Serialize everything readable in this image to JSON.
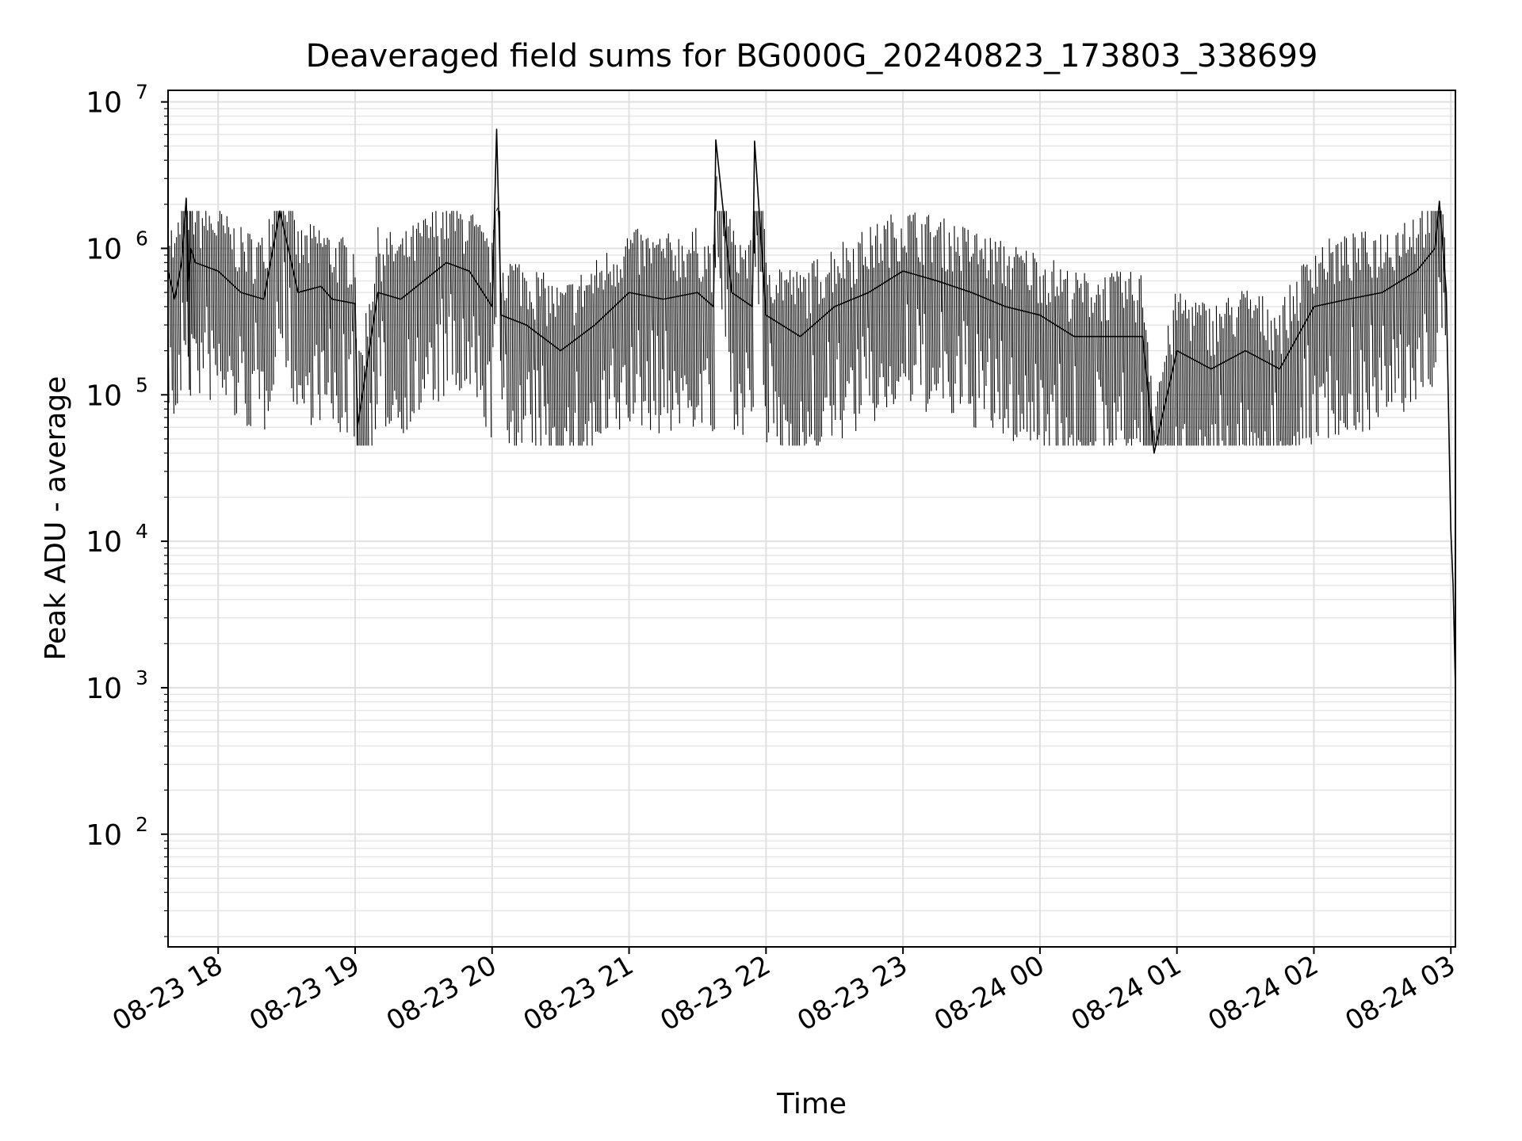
{
  "chart_data": {
    "type": "line",
    "title": "Deaveraged field sums for BG000G_20240823_173803_338699",
    "xlabel": "Time",
    "ylabel": "Peak ADU - average",
    "yscale": "log",
    "xlim": [
      "2024-08-23 17:38:03",
      "2024-08-24 03:02:00"
    ],
    "ylim": [
      17,
      12000000
    ],
    "grid": "on",
    "x_ticks": [
      {
        "value": "2024-08-23 18:00",
        "label": "08-23 18"
      },
      {
        "value": "2024-08-23 19:00",
        "label": "08-23 19"
      },
      {
        "value": "2024-08-23 20:00",
        "label": "08-23 20"
      },
      {
        "value": "2024-08-23 21:00",
        "label": "08-23 21"
      },
      {
        "value": "2024-08-23 22:00",
        "label": "08-23 22"
      },
      {
        "value": "2024-08-23 23:00",
        "label": "08-23 23"
      },
      {
        "value": "2024-08-24 00:00",
        "label": "08-24 00"
      },
      {
        "value": "2024-08-24 01:00",
        "label": "08-24 01"
      },
      {
        "value": "2024-08-24 02:00",
        "label": "08-24 02"
      },
      {
        "value": "2024-08-24 03:00",
        "label": "08-24 03"
      }
    ],
    "y_ticks": [
      {
        "value": 100,
        "base": "10",
        "exp": "2"
      },
      {
        "value": 1000,
        "base": "10",
        "exp": "3"
      },
      {
        "value": 10000,
        "base": "10",
        "exp": "4"
      },
      {
        "value": 100000,
        "base": "10",
        "exp": "5"
      },
      {
        "value": 1000000,
        "base": "10",
        "exp": "6"
      },
      {
        "value": 10000000,
        "base": "10",
        "exp": "7"
      }
    ],
    "series": [
      {
        "color": "#000000",
        "x": [
          "2024-08-23 17:38",
          "2024-08-23 17:41",
          "2024-08-23 17:44",
          "2024-08-23 17:46",
          "2024-08-23 17:47",
          "2024-08-23 17:48",
          "2024-08-23 17:50",
          "2024-08-23 18:00",
          "2024-08-23 18:10",
          "2024-08-23 18:20",
          "2024-08-23 18:27",
          "2024-08-23 18:35",
          "2024-08-23 18:45",
          "2024-08-23 18:50",
          "2024-08-23 19:00",
          "2024-08-23 19:01",
          "2024-08-23 19:10",
          "2024-08-23 19:20",
          "2024-08-23 19:30",
          "2024-08-23 19:40",
          "2024-08-23 19:50",
          "2024-08-23 20:00",
          "2024-08-23 20:02",
          "2024-08-23 20:04",
          "2024-08-23 20:15",
          "2024-08-23 20:30",
          "2024-08-23 20:45",
          "2024-08-23 21:00",
          "2024-08-23 21:15",
          "2024-08-23 21:30",
          "2024-08-23 21:37",
          "2024-08-23 21:38",
          "2024-08-23 21:45",
          "2024-08-23 21:54",
          "2024-08-23 21:55",
          "2024-08-23 22:00",
          "2024-08-23 22:15",
          "2024-08-23 22:30",
          "2024-08-23 22:45",
          "2024-08-23 23:00",
          "2024-08-23 23:15",
          "2024-08-23 23:30",
          "2024-08-23 23:45",
          "2024-08-24 00:00",
          "2024-08-24 00:15",
          "2024-08-24 00:30",
          "2024-08-24 00:45",
          "2024-08-24 00:50",
          "2024-08-24 01:00",
          "2024-08-24 01:15",
          "2024-08-24 01:30",
          "2024-08-24 01:45",
          "2024-08-24 02:00",
          "2024-08-24 02:15",
          "2024-08-24 02:30",
          "2024-08-24 02:45",
          "2024-08-24 02:53",
          "2024-08-24 02:55",
          "2024-08-24 02:58",
          "2024-08-24 03:00",
          "2024-08-24 03:01",
          "2024-08-24 03:02"
        ],
        "y": [
          700000,
          450000,
          800000,
          2200000,
          600000,
          1000000,
          800000,
          700000,
          500000,
          450000,
          1800000,
          500000,
          550000,
          450000,
          420000,
          60000,
          500000,
          450000,
          600000,
          800000,
          700000,
          400000,
          6500000,
          350000,
          300000,
          200000,
          300000,
          500000,
          450000,
          500000,
          400000,
          5500000,
          500000,
          400000,
          5400000,
          350000,
          250000,
          400000,
          500000,
          700000,
          600000,
          500000,
          400000,
          350000,
          250000,
          250000,
          250000,
          40000,
          200000,
          150000,
          200000,
          150000,
          400000,
          450000,
          500000,
          700000,
          1000000,
          2100000,
          500000,
          12000,
          5000,
          1000
        ]
      }
    ]
  }
}
